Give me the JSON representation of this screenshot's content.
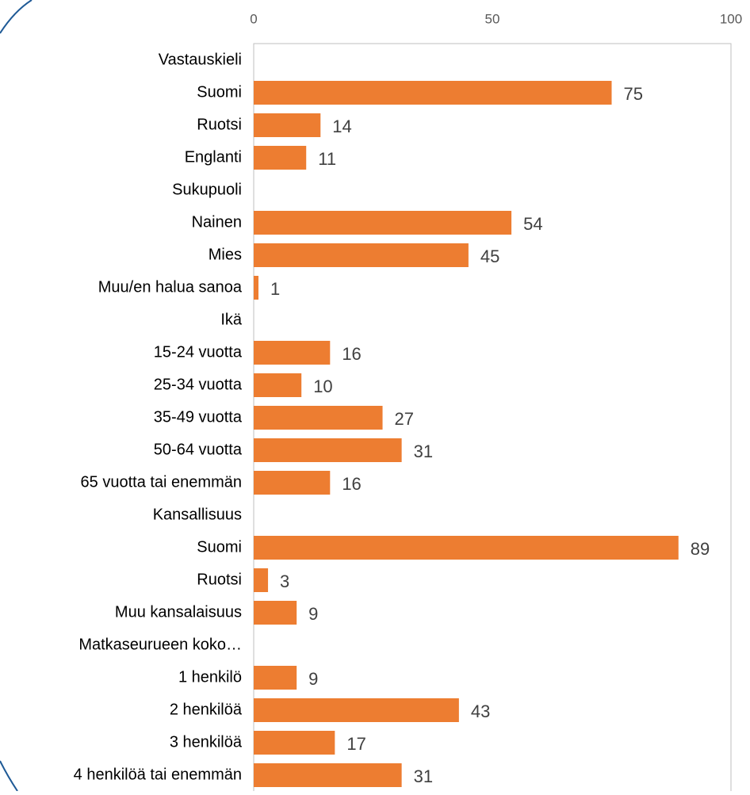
{
  "chart_data": {
    "type": "barh",
    "categories": [
      "Vastauskieli",
      "Suomi",
      "Ruotsi",
      "Englanti",
      "Sukupuoli",
      "Nainen",
      "Mies",
      "Muu/en halua sanoa",
      "Ikä",
      "15-24 vuotta",
      "25-34 vuotta",
      "35-49 vuotta",
      "50-64 vuotta",
      "65 vuotta tai enemmän",
      "Kansallisuus",
      "Suomi",
      "Ruotsi",
      "Muu kansalaisuus",
      "Matkaseurueen koko…",
      "1 henkilö",
      "2 henkilöä",
      "3 henkilöä",
      "4 henkilöä tai enemmän"
    ],
    "values": [
      null,
      75,
      14,
      11,
      null,
      54,
      45,
      1,
      null,
      16,
      10,
      27,
      31,
      16,
      null,
      89,
      3,
      9,
      null,
      9,
      43,
      17,
      31
    ],
    "color": "#ED7D31",
    "xlim": [
      0,
      100
    ],
    "xticks": [
      0,
      50,
      100
    ]
  }
}
